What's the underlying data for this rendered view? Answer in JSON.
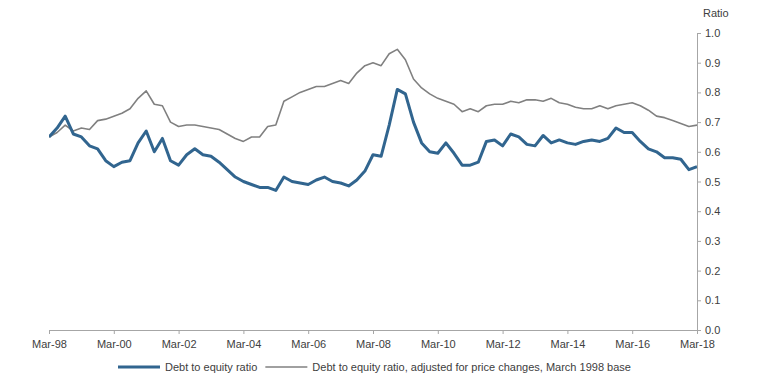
{
  "chart_data": {
    "type": "line",
    "ylabel": "Ratio",
    "categories": [
      "Mar-98",
      null,
      null,
      null,
      null,
      null,
      null,
      null,
      "Mar-00",
      null,
      null,
      null,
      null,
      null,
      null,
      null,
      "Mar-02",
      null,
      null,
      null,
      null,
      null,
      null,
      null,
      "Mar-04",
      null,
      null,
      null,
      null,
      null,
      null,
      null,
      "Mar-06",
      null,
      null,
      null,
      null,
      null,
      null,
      null,
      "Mar-08",
      null,
      null,
      null,
      null,
      null,
      null,
      null,
      "Mar-10",
      null,
      null,
      null,
      null,
      null,
      null,
      null,
      "Mar-12",
      null,
      null,
      null,
      null,
      null,
      null,
      null,
      "Mar-14",
      null,
      null,
      null,
      null,
      null,
      null,
      null,
      "Mar-16",
      null,
      null,
      null,
      null,
      null,
      null,
      null,
      "Mar-18"
    ],
    "series": [
      {
        "name": "Debt to equity ratio",
        "color": "#31658f",
        "values": [
          0.65,
          0.68,
          0.72,
          0.66,
          0.65,
          0.62,
          0.61,
          0.57,
          0.55,
          0.565,
          0.57,
          0.63,
          0.67,
          0.6,
          0.645,
          0.57,
          0.555,
          0.59,
          0.61,
          0.59,
          0.585,
          0.565,
          0.54,
          0.515,
          0.5,
          0.49,
          0.48,
          0.48,
          0.47,
          0.515,
          0.5,
          0.495,
          0.49,
          0.505,
          0.515,
          0.5,
          0.495,
          0.485,
          0.505,
          0.535,
          0.59,
          0.585,
          0.69,
          0.81,
          0.795,
          0.7,
          0.63,
          0.6,
          0.595,
          0.63,
          0.595,
          0.555,
          0.555,
          0.565,
          0.635,
          0.64,
          0.62,
          0.66,
          0.65,
          0.625,
          0.62,
          0.655,
          0.63,
          0.64,
          0.63,
          0.625,
          0.635,
          0.64,
          0.635,
          0.645,
          0.68,
          0.665,
          0.665,
          0.635,
          0.61,
          0.6,
          0.58,
          0.58,
          0.575,
          0.54,
          0.55
        ]
      },
      {
        "name": "Debt to equity ratio, adjusted for price changes, March 1998 base",
        "color": "#808080",
        "values": [
          0.65,
          0.665,
          0.69,
          0.67,
          0.68,
          0.675,
          0.705,
          0.71,
          0.72,
          0.73,
          0.745,
          0.78,
          0.805,
          0.76,
          0.755,
          0.7,
          0.685,
          0.69,
          0.69,
          0.685,
          0.68,
          0.675,
          0.66,
          0.645,
          0.635,
          0.65,
          0.65,
          0.685,
          0.69,
          0.77,
          0.785,
          0.8,
          0.81,
          0.82,
          0.82,
          0.83,
          0.84,
          0.83,
          0.865,
          0.89,
          0.9,
          0.89,
          0.93,
          0.945,
          0.91,
          0.845,
          0.815,
          0.795,
          0.78,
          0.77,
          0.76,
          0.735,
          0.745,
          0.735,
          0.755,
          0.76,
          0.76,
          0.77,
          0.765,
          0.775,
          0.775,
          0.77,
          0.78,
          0.765,
          0.76,
          0.75,
          0.745,
          0.745,
          0.755,
          0.745,
          0.755,
          0.76,
          0.765,
          0.755,
          0.74,
          0.72,
          0.715,
          0.705,
          0.695,
          0.685,
          0.69
        ]
      }
    ],
    "ylim": [
      0,
      1
    ],
    "yticks": [
      {
        "value": 0,
        "label": "0.0"
      },
      0.1,
      0.2,
      0.3,
      0.4,
      0.5,
      0.6,
      0.7,
      0.8,
      0.9,
      {
        "value": 1,
        "label": "1.0"
      }
    ],
    "grid": false,
    "legend": "bottom"
  }
}
